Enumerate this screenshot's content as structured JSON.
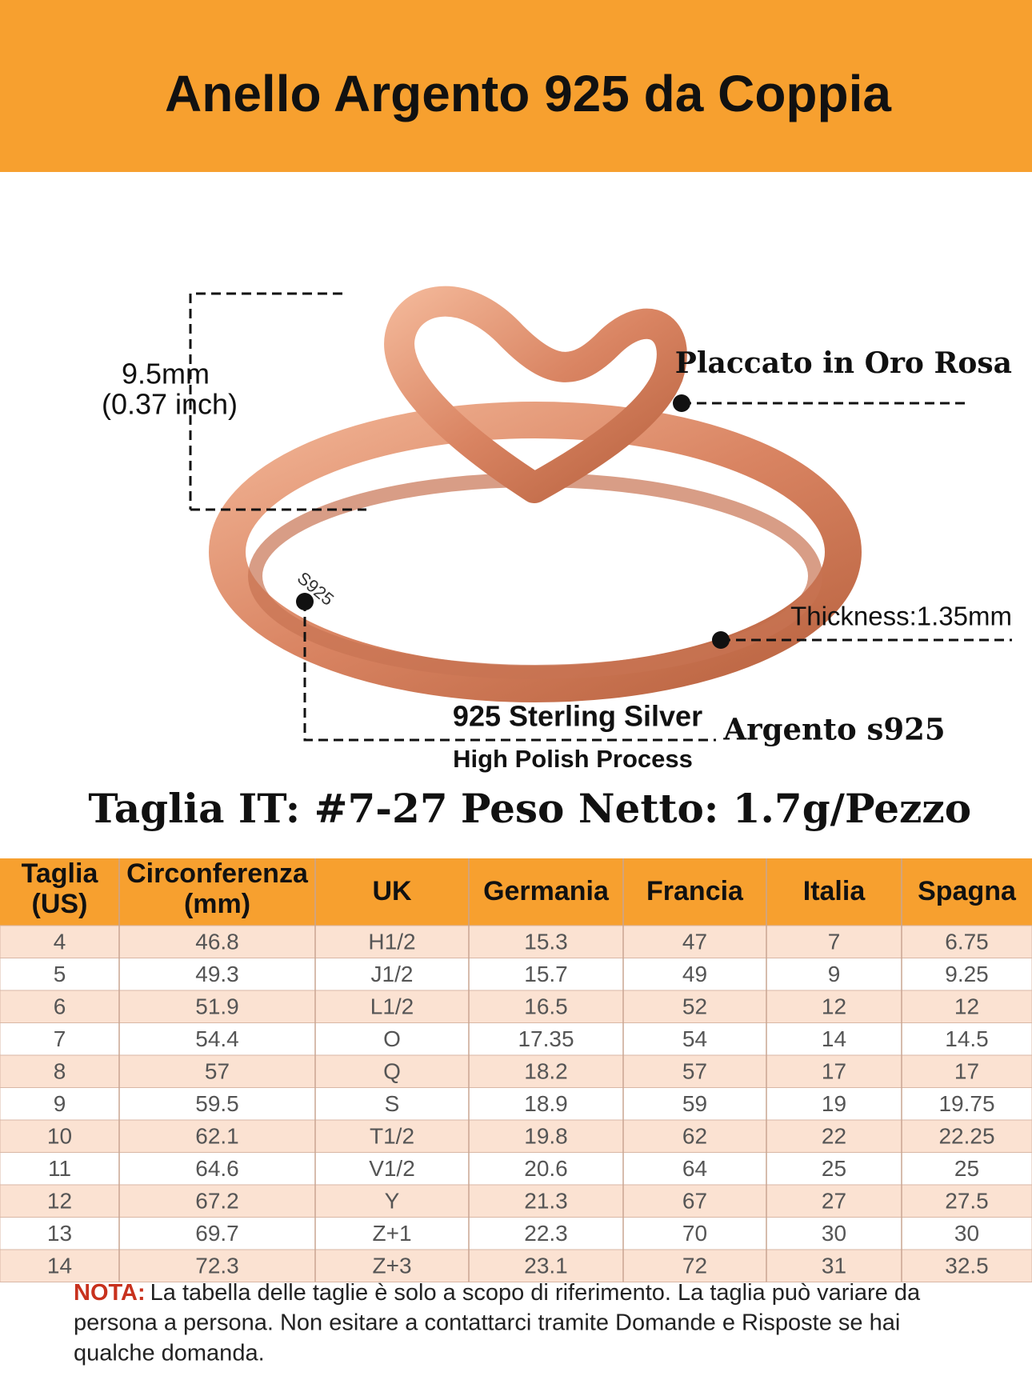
{
  "header": {
    "title": "Anello Argento 925 da Coppia"
  },
  "annotations": {
    "height": "9.5mm",
    "height_inch": "(0.37 inch)",
    "plating": "Placcato in Oro Rosa",
    "thickness": "Thickness:1.35mm",
    "material": "925 Sterling Silver",
    "process": "High Polish Process",
    "material_it": "Argento s925",
    "stamp": "S925"
  },
  "specs": {
    "size_range": "Taglia IT: #7-27",
    "weight": "Peso Netto: 1.7g/Pezzo"
  },
  "table": {
    "header": [
      "Taglia\n(US)",
      "Circonferenza\n(mm)",
      "UK",
      "Germania",
      "Francia",
      "Italia",
      "Spagna"
    ],
    "rows": [
      [
        "4",
        "46.8",
        "H1/2",
        "15.3",
        "47",
        "7",
        "6.75"
      ],
      [
        "5",
        "49.3",
        "J1/2",
        "15.7",
        "49",
        "9",
        "9.25"
      ],
      [
        "6",
        "51.9",
        "L1/2",
        "16.5",
        "52",
        "12",
        "12"
      ],
      [
        "7",
        "54.4",
        "O",
        "17.35",
        "54",
        "14",
        "14.5"
      ],
      [
        "8",
        "57",
        "Q",
        "18.2",
        "57",
        "17",
        "17"
      ],
      [
        "9",
        "59.5",
        "S",
        "18.9",
        "59",
        "19",
        "19.75"
      ],
      [
        "10",
        "62.1",
        "T1/2",
        "19.8",
        "62",
        "22",
        "22.25"
      ],
      [
        "11",
        "64.6",
        "V1/2",
        "20.6",
        "64",
        "25",
        "25"
      ],
      [
        "12",
        "67.2",
        "Y",
        "21.3",
        "67",
        "27",
        "27.5"
      ],
      [
        "13",
        "69.7",
        "Z+1",
        "22.3",
        "70",
        "30",
        "30"
      ],
      [
        "14",
        "72.3",
        "Z+3",
        "23.1",
        "72",
        "31",
        "32.5"
      ]
    ]
  },
  "note": {
    "label": "NOTA:",
    "lines": [
      "La tabella delle taglie è solo a scopo di riferimento. La taglia può variare da",
      "persona a persona.  Non esitare a contattarci tramite Domande e Risposte se hai",
      "qualche domanda."
    ]
  }
}
